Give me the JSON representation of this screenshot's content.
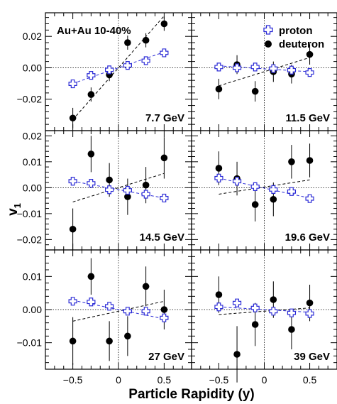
{
  "chart_data": {
    "type": "scatter",
    "xlabel": "Particle Rapidity (y)",
    "ylabel": "v",
    "ylabel_sub": "1",
    "system_label": "Au+Au 10-40%",
    "xlim": [
      -0.8,
      0.8
    ],
    "x_ticks": [
      "-0.5",
      "0",
      "0.5"
    ],
    "legend": {
      "placement": "top-right of panel 2",
      "entries": [
        {
          "name": "proton",
          "marker": "open-cross",
          "color": "#2b2bd6"
        },
        {
          "name": "deuteron",
          "marker": "filled-circle",
          "color": "#000000"
        }
      ]
    },
    "panels": [
      {
        "energy": "7.7 GeV",
        "ylim": [
          -0.04,
          0.035
        ],
        "y_ticks": [
          "-0.02",
          "0.00",
          "0.02"
        ],
        "proton": {
          "x": [
            -0.5,
            -0.3,
            -0.1,
            0.1,
            0.3,
            0.5
          ],
          "y": [
            -0.0102,
            -0.0048,
            -0.0013,
            0.0015,
            0.0045,
            0.0095
          ],
          "err": [
            0.0012,
            0.001,
            0.001,
            0.001,
            0.001,
            0.0012
          ]
        },
        "proton_fit": [
          -0.01,
          0.01
        ],
        "deuteron": {
          "x": [
            -0.5,
            -0.3,
            -0.1,
            0.1,
            0.3,
            0.5
          ],
          "y": [
            -0.032,
            -0.017,
            -0.0045,
            0.016,
            0.0175,
            0.028
          ],
          "err": [
            0.0065,
            0.0045,
            0.004,
            0.0045,
            0.0045,
            0.0045
          ]
        },
        "deuteron_fit": [
          -0.033,
          0.033
        ]
      },
      {
        "energy": "11.5 GeV",
        "ylim": [
          -0.04,
          0.035
        ],
        "y_ticks": [
          "-0.02",
          "0.00",
          "0.02"
        ],
        "proton": {
          "x": [
            -0.5,
            -0.3,
            -0.1,
            0.1,
            0.3,
            0.5
          ],
          "y": [
            0.0005,
            0.0,
            0.0005,
            -0.0005,
            -0.0015,
            -0.003
          ],
          "err": [
            0.0012,
            0.0012,
            0.0012,
            0.0012,
            0.0012,
            0.0012
          ]
        },
        "proton_fit": [
          0.0012,
          -0.0025
        ],
        "deuteron": {
          "x": [
            -0.5,
            -0.3,
            -0.1,
            0.1,
            0.3,
            0.5
          ],
          "y": [
            -0.0135,
            0.002,
            -0.015,
            -0.0025,
            -0.004,
            0.0085
          ],
          "err": [
            0.0065,
            0.006,
            0.0065,
            0.0065,
            0.006,
            0.0065
          ]
        },
        "deuteron_fit": [
          -0.0115,
          0.0065
        ]
      },
      {
        "energy": "14.5 GeV",
        "ylim": [
          -0.024,
          0.022
        ],
        "y_ticks": [
          "-0.02",
          "-0.01",
          "0.00",
          "0.01",
          "0.02"
        ],
        "proton": {
          "x": [
            -0.5,
            -0.3,
            -0.1,
            0.1,
            0.3,
            0.5
          ],
          "y": [
            0.0025,
            0.0017,
            -0.0008,
            -0.001,
            -0.0025,
            -0.004
          ],
          "err": [
            0.001,
            0.001,
            0.001,
            0.001,
            0.001,
            0.001
          ]
        },
        "proton_fit": [
          0.0025,
          -0.004
        ],
        "deuteron": {
          "x": [
            -0.5,
            -0.3,
            -0.1,
            0.1,
            0.3,
            0.5
          ],
          "y": [
            -0.016,
            0.013,
            0.003,
            -0.0035,
            0.001,
            0.0115
          ],
          "err": [
            0.008,
            0.007,
            0.0065,
            0.007,
            0.007,
            0.008
          ]
        },
        "deuteron_fit": [
          -0.0055,
          0.0055
        ]
      },
      {
        "energy": "19.6 GeV",
        "ylim": [
          -0.024,
          0.022
        ],
        "y_ticks": [
          "-0.02",
          "-0.01",
          "0.00",
          "0.01",
          "0.02"
        ],
        "proton": {
          "x": [
            -0.5,
            -0.3,
            -0.1,
            0.1,
            0.3,
            0.5
          ],
          "y": [
            0.0037,
            0.0025,
            0.0004,
            -0.0007,
            -0.0015,
            -0.0042
          ],
          "err": [
            0.001,
            0.001,
            0.001,
            0.001,
            0.001,
            0.001
          ]
        },
        "proton_fit": [
          0.0037,
          -0.004
        ],
        "deuteron": {
          "x": [
            -0.5,
            -0.3,
            -0.1,
            0.1,
            0.3,
            0.5
          ],
          "y": [
            0.0075,
            0.0035,
            -0.0065,
            -0.0045,
            0.01,
            0.0105
          ],
          "err": [
            0.0065,
            0.0065,
            0.0065,
            0.0065,
            0.0065,
            0.0065
          ]
        },
        "deuteron_fit": [
          -0.0025,
          0.003
        ]
      },
      {
        "energy": "27 GeV",
        "ylim": [
          -0.018,
          0.018
        ],
        "y_ticks": [
          "-0.01",
          "0.00",
          "0.01"
        ],
        "proton": {
          "x": [
            -0.5,
            -0.3,
            -0.1,
            0.1,
            0.3,
            0.5
          ],
          "y": [
            0.0025,
            0.0023,
            0.001,
            -0.0005,
            -0.0005,
            -0.0025
          ],
          "err": [
            0.0008,
            0.0008,
            0.0008,
            0.0008,
            0.0008,
            0.0008
          ]
        },
        "proton_fit": [
          0.0028,
          -0.0028
        ],
        "deuteron": {
          "x": [
            -0.5,
            -0.3,
            -0.1,
            0.1,
            0.3,
            0.5
          ],
          "y": [
            -0.0095,
            0.01,
            -0.0095,
            -0.008,
            0.007,
            0.0
          ],
          "err": [
            0.0072,
            0.0055,
            0.006,
            0.006,
            0.006,
            0.006
          ]
        },
        "deuteron_fit": [
          -0.0035,
          0.0025
        ]
      },
      {
        "energy": "39 GeV",
        "ylim": [
          -0.018,
          0.018
        ],
        "y_ticks": [
          "-0.01",
          "0.00",
          "0.01"
        ],
        "proton": {
          "x": [
            -0.5,
            -0.3,
            -0.1,
            0.1,
            0.3,
            0.5
          ],
          "y": [
            0.0008,
            0.002,
            0.0005,
            -0.0005,
            -0.001,
            -0.0012
          ],
          "err": [
            0.0008,
            0.0008,
            0.0008,
            0.0008,
            0.0008,
            0.0008
          ]
        },
        "proton_fit": [
          0.0008,
          -0.0008
        ],
        "deuteron": {
          "x": [
            -0.5,
            -0.3,
            -0.1,
            0.1,
            0.3,
            0.5
          ],
          "y": [
            0.0045,
            -0.0135,
            -0.0045,
            0.003,
            -0.006,
            0.002
          ],
          "err": [
            0.0055,
            0.0085,
            0.0065,
            0.0055,
            0.006,
            0.0055
          ]
        },
        "deuteron_fit": [
          -0.0015,
          0.0005
        ]
      }
    ]
  }
}
